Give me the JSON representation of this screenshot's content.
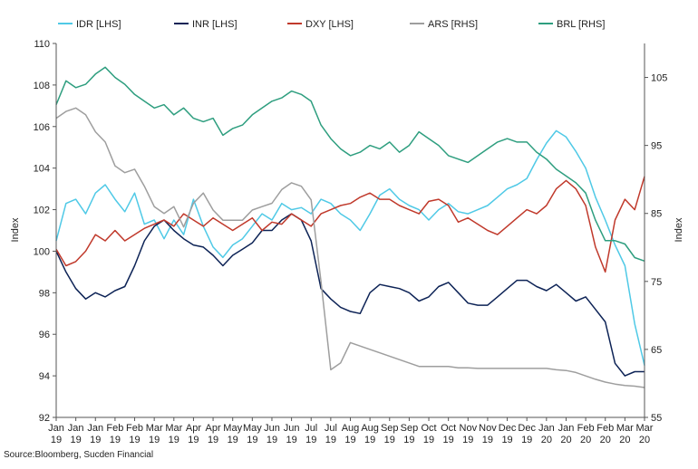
{
  "chart_data": {
    "type": "line",
    "source": "Source:Bloomberg, Sucden Financial",
    "left_axis": {
      "label": "Index",
      "min": 92,
      "max": 110,
      "ticks": [
        92,
        94,
        96,
        98,
        100,
        102,
        104,
        106,
        108,
        110
      ]
    },
    "right_axis": {
      "label": "Index",
      "min": 55,
      "max": 110,
      "ticks": [
        55,
        65,
        75,
        85,
        95,
        105
      ]
    },
    "x_tick_labels": [
      [
        "Jan",
        "19"
      ],
      [
        "Jan",
        "19"
      ],
      [
        "Jan",
        "19"
      ],
      [
        "Feb",
        "19"
      ],
      [
        "Feb",
        "19"
      ],
      [
        "Mar",
        "19"
      ],
      [
        "Mar",
        "19"
      ],
      [
        "Apr",
        "19"
      ],
      [
        "Apr",
        "19"
      ],
      [
        "May",
        "19"
      ],
      [
        "May",
        "19"
      ],
      [
        "Jun",
        "19"
      ],
      [
        "Jun",
        "19"
      ],
      [
        "Jul",
        "19"
      ],
      [
        "Jul",
        "19"
      ],
      [
        "Aug",
        "19"
      ],
      [
        "Aug",
        "19"
      ],
      [
        "Sep",
        "19"
      ],
      [
        "Sep",
        "19"
      ],
      [
        "Oct",
        "19"
      ],
      [
        "Oct",
        "19"
      ],
      [
        "Nov",
        "19"
      ],
      [
        "Nov",
        "19"
      ],
      [
        "Dec",
        "19"
      ],
      [
        "Dec",
        "19"
      ],
      [
        "Jan",
        "20"
      ],
      [
        "Jan",
        "20"
      ],
      [
        "Feb",
        "20"
      ],
      [
        "Feb",
        "20"
      ],
      [
        "Mar",
        "20"
      ],
      [
        "Mar",
        "20"
      ]
    ],
    "x_range": [
      0,
      30
    ],
    "legend_position": "top",
    "grid": false,
    "series": [
      {
        "name": "IDR [LHS]",
        "axis": "left",
        "color": "#4fc9e6",
        "x": [
          0,
          0.5,
          1,
          1.5,
          2,
          2.5,
          3,
          3.5,
          4,
          4.5,
          5,
          5.5,
          6,
          6.5,
          7,
          7.5,
          8,
          8.5,
          9,
          9.5,
          10,
          10.5,
          11,
          11.5,
          12,
          12.5,
          13,
          13.5,
          14,
          14.5,
          15,
          15.5,
          16,
          16.5,
          17,
          17.5,
          18,
          18.5,
          19,
          19.5,
          20,
          20.5,
          21,
          21.5,
          22,
          22.5,
          23,
          23.5,
          24,
          24.5,
          25,
          25.5,
          26,
          26.5,
          27,
          27.5,
          28,
          28.5,
          29,
          29.5,
          30
        ],
        "y": [
          100.5,
          102.3,
          102.5,
          101.8,
          102.8,
          103.2,
          102.5,
          101.9,
          102.8,
          101.3,
          101.5,
          100.6,
          101.5,
          100.8,
          102.5,
          101.2,
          100.2,
          99.7,
          100.3,
          100.6,
          101.2,
          101.8,
          101.5,
          102.3,
          102.0,
          102.1,
          101.8,
          102.5,
          102.3,
          101.8,
          101.5,
          101.0,
          101.8,
          102.7,
          103.0,
          102.5,
          102.2,
          102.0,
          101.5,
          102.0,
          102.3,
          101.9,
          101.8,
          102.0,
          102.2,
          102.6,
          103.0,
          103.2,
          103.5,
          104.4,
          105.2,
          105.8,
          105.5,
          104.8,
          104.0,
          102.6,
          101.5,
          100.3,
          99.3,
          96.5,
          94.5
        ]
      },
      {
        "name": "INR [LHS]",
        "axis": "left",
        "color": "#0d2356",
        "x": [
          0,
          0.5,
          1,
          1.5,
          2,
          2.5,
          3,
          3.5,
          4,
          4.5,
          5,
          5.5,
          6,
          6.5,
          7,
          7.5,
          8,
          8.5,
          9,
          9.5,
          10,
          10.5,
          11,
          11.5,
          12,
          12.5,
          13,
          13.5,
          14,
          14.5,
          15,
          15.5,
          16,
          16.5,
          17,
          17.5,
          18,
          18.5,
          19,
          19.5,
          20,
          20.5,
          21,
          21.5,
          22,
          22.5,
          23,
          23.5,
          24,
          24.5,
          25,
          25.5,
          26,
          26.5,
          27,
          27.5,
          28,
          28.5,
          29,
          29.5,
          30
        ],
        "y": [
          100.0,
          99.0,
          98.2,
          97.7,
          98.0,
          97.8,
          98.1,
          98.3,
          99.3,
          100.5,
          101.2,
          101.5,
          101.0,
          100.6,
          100.3,
          100.2,
          99.8,
          99.3,
          99.8,
          100.1,
          100.4,
          101.0,
          101.0,
          101.5,
          101.8,
          101.5,
          100.5,
          98.2,
          97.7,
          97.3,
          97.1,
          97.0,
          98.0,
          98.4,
          98.3,
          98.2,
          98.0,
          97.6,
          97.8,
          98.3,
          98.5,
          98.0,
          97.5,
          97.4,
          97.4,
          97.8,
          98.2,
          98.6,
          98.6,
          98.3,
          98.1,
          98.4,
          98.0,
          97.6,
          97.8,
          97.2,
          96.6,
          94.6,
          94.0,
          94.2,
          94.2
        ]
      },
      {
        "name": "DXY [LHS]",
        "axis": "left",
        "color": "#c0392b",
        "x": [
          0,
          0.5,
          1,
          1.5,
          2,
          2.5,
          3,
          3.5,
          4,
          4.5,
          5,
          5.5,
          6,
          6.5,
          7,
          7.5,
          8,
          8.5,
          9,
          9.5,
          10,
          10.5,
          11,
          11.5,
          12,
          12.5,
          13,
          13.5,
          14,
          14.5,
          15,
          15.5,
          16,
          16.5,
          17,
          17.5,
          18,
          18.5,
          19,
          19.5,
          20,
          20.5,
          21,
          21.5,
          22,
          22.5,
          23,
          23.5,
          24,
          24.5,
          25,
          25.5,
          26,
          26.5,
          27,
          27.5,
          28,
          28.5,
          29,
          29.5,
          30
        ],
        "y": [
          100.1,
          99.3,
          99.5,
          100.0,
          100.8,
          100.5,
          101.0,
          100.5,
          100.8,
          101.1,
          101.3,
          101.5,
          101.2,
          101.8,
          101.5,
          101.2,
          101.6,
          101.3,
          101.0,
          101.3,
          101.6,
          101.0,
          101.4,
          101.3,
          101.8,
          101.5,
          101.2,
          101.8,
          102.0,
          102.2,
          102.3,
          102.6,
          102.8,
          102.5,
          102.5,
          102.2,
          102.0,
          101.8,
          102.4,
          102.5,
          102.2,
          101.4,
          101.6,
          101.3,
          101.0,
          100.8,
          101.2,
          101.6,
          102.0,
          101.8,
          102.2,
          103.0,
          103.4,
          103.0,
          102.2,
          100.2,
          99.0,
          101.5,
          102.5,
          102.0,
          103.6
        ]
      },
      {
        "name": "ARS [RHS]",
        "axis": "right",
        "color": "#9e9e9e",
        "x": [
          0,
          0.5,
          1,
          1.5,
          2,
          2.5,
          3,
          3.5,
          4,
          4.5,
          5,
          5.5,
          6,
          6.5,
          7,
          7.5,
          8,
          8.5,
          9,
          9.5,
          10,
          10.5,
          11,
          11.5,
          12,
          12.5,
          13,
          13.5,
          14,
          14.5,
          15,
          15.5,
          16,
          16.5,
          17,
          17.5,
          18,
          18.5,
          19,
          19.5,
          20,
          20.5,
          21,
          21.5,
          22,
          22.5,
          23,
          23.5,
          24,
          24.5,
          25,
          25.5,
          26,
          26.5,
          27,
          27.5,
          28,
          28.5,
          29,
          29.5,
          30
        ],
        "y": [
          99.0,
          100.0,
          100.5,
          99.5,
          97.0,
          95.5,
          92.0,
          91.0,
          91.5,
          89.0,
          86.0,
          85.0,
          86.0,
          83.0,
          86.5,
          88.0,
          85.5,
          84.0,
          84.0,
          84.0,
          85.5,
          86.0,
          86.5,
          88.5,
          89.5,
          89.0,
          87.0,
          75.0,
          62.0,
          63.0,
          66.0,
          65.5,
          65.0,
          64.5,
          64.0,
          63.5,
          63.0,
          62.5,
          62.5,
          62.5,
          62.5,
          62.3,
          62.3,
          62.2,
          62.2,
          62.2,
          62.2,
          62.2,
          62.2,
          62.2,
          62.2,
          62.0,
          61.9,
          61.6,
          61.1,
          60.6,
          60.2,
          59.9,
          59.7,
          59.6,
          59.4
        ]
      },
      {
        "name": "BRL [RHS]",
        "axis": "right",
        "color": "#2e9e7f",
        "x": [
          0,
          0.5,
          1,
          1.5,
          2,
          2.5,
          3,
          3.5,
          4,
          4.5,
          5,
          5.5,
          6,
          6.5,
          7,
          7.5,
          8,
          8.5,
          9,
          9.5,
          10,
          10.5,
          11,
          11.5,
          12,
          12.5,
          13,
          13.5,
          14,
          14.5,
          15,
          15.5,
          16,
          16.5,
          17,
          17.5,
          18,
          18.5,
          19,
          19.5,
          20,
          20.5,
          21,
          21.5,
          22,
          22.5,
          23,
          23.5,
          24,
          24.5,
          25,
          25.5,
          26,
          26.5,
          27,
          27.5,
          28,
          28.5,
          29,
          29.5,
          30
        ],
        "y": [
          101.0,
          104.5,
          103.5,
          104.0,
          105.5,
          106.5,
          105.0,
          104.0,
          102.5,
          101.5,
          100.5,
          101.0,
          99.5,
          100.5,
          99.0,
          98.5,
          99.0,
          96.5,
          97.5,
          98.0,
          99.5,
          100.5,
          101.5,
          102.0,
          103.0,
          102.5,
          101.5,
          98.0,
          96.0,
          94.5,
          93.5,
          94.0,
          95.0,
          94.5,
          95.5,
          94.0,
          95.0,
          97.0,
          96.0,
          95.0,
          93.5,
          93.0,
          92.5,
          93.5,
          94.5,
          95.5,
          96.0,
          95.5,
          95.5,
          94.0,
          93.0,
          91.5,
          90.5,
          89.5,
          88.0,
          84.0,
          81.0,
          81.0,
          80.5,
          78.5,
          78.0
        ]
      }
    ]
  }
}
